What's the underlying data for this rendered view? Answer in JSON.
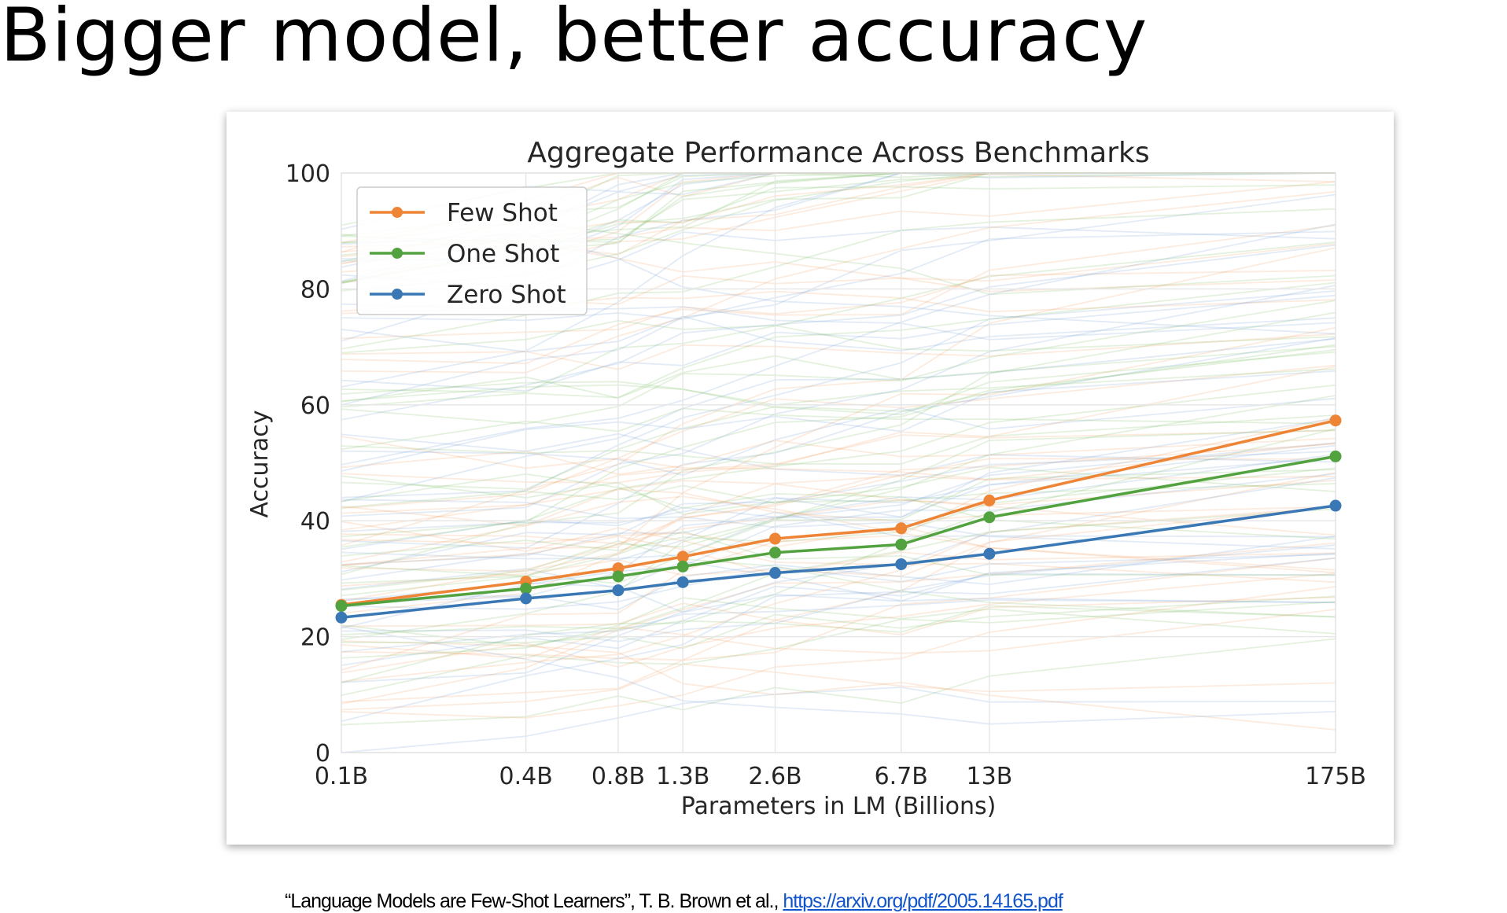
{
  "slide": {
    "title": "Bigger model, better accuracy",
    "citation_text": "“Language Models are Few-Shot Learners”, T. B. Brown et al., ",
    "citation_link": "https://arxiv.org/pdf/2005.14165.pdf"
  },
  "chart_data": {
    "type": "line",
    "title": "Aggregate Performance Across Benchmarks",
    "xlabel": "Parameters in LM (Billions)",
    "ylabel": "Accuracy",
    "categories": [
      "0.1B",
      "0.4B",
      "0.8B",
      "1.3B",
      "2.6B",
      "6.7B",
      "13B",
      "175B"
    ],
    "x": [
      0.1,
      0.4,
      0.8,
      1.3,
      2.6,
      6.7,
      13,
      175
    ],
    "x_scale": "log",
    "ylim": [
      0,
      100
    ],
    "yticks": [
      0,
      20,
      40,
      60,
      80,
      100
    ],
    "grid": true,
    "legend_position": "top-left",
    "series": [
      {
        "name": "Few Shot",
        "color": "#ee8435",
        "values": [
          25.5,
          29.5,
          31.8,
          33.8,
          36.9,
          38.7,
          43.5,
          57.3
        ]
      },
      {
        "name": "One Shot",
        "color": "#52a33f",
        "values": [
          25.3,
          28.3,
          30.4,
          32.1,
          34.5,
          35.9,
          40.6,
          51.1
        ]
      },
      {
        "name": "Zero Shot",
        "color": "#3a78b5",
        "values": [
          23.3,
          26.6,
          28.0,
          29.4,
          31.0,
          32.5,
          34.3,
          42.6
        ]
      }
    ]
  }
}
